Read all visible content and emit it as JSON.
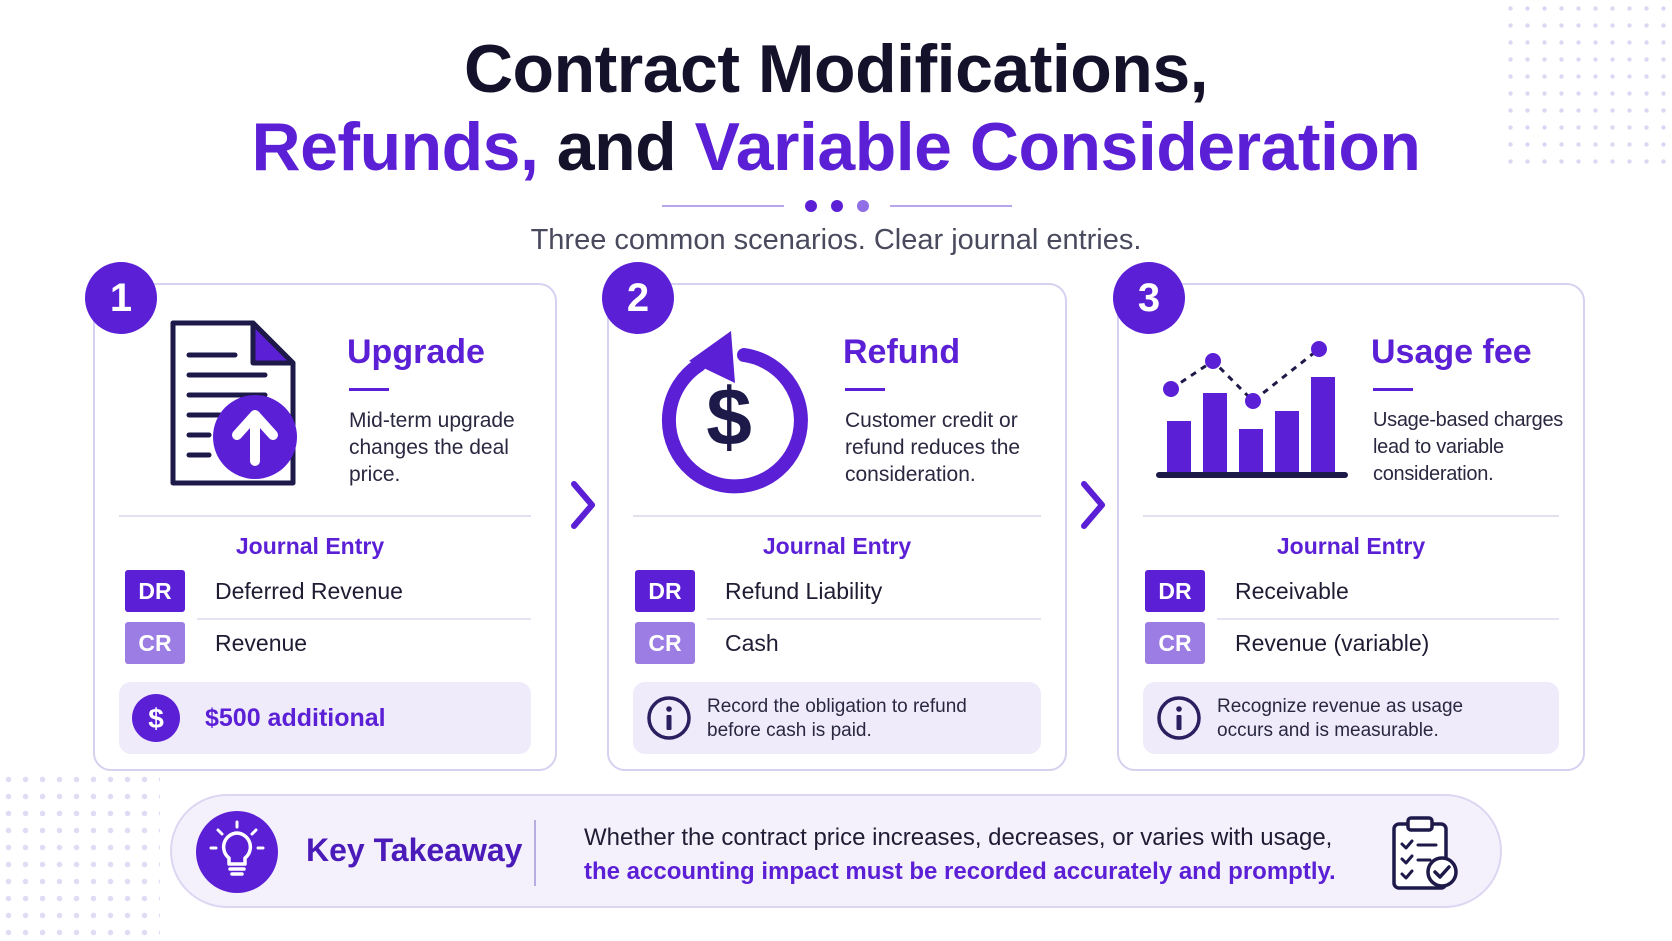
{
  "header": {
    "title_line1": "Contract Modifications,",
    "title_line2_part1": "Refunds,",
    "title_line2_part2": " and ",
    "title_line2_part3": "Variable Consideration",
    "subtitle": "Three common scenarios. Clear journal entries."
  },
  "colors": {
    "accent": "#5b1fd6",
    "accent_light": "#9b7de4",
    "note_bg": "#efebfb"
  },
  "cards": [
    {
      "number": "1",
      "icon": "document-upload-icon",
      "title": "Upgrade",
      "description": "Mid-term upgrade changes the deal price.",
      "journal_title": "Journal Entry",
      "dr_tag": "DR",
      "dr_account": "Deferred Revenue",
      "cr_tag": "CR",
      "cr_account": "Revenue",
      "note_icon": "dollar-icon",
      "note": "$500 additional"
    },
    {
      "number": "2",
      "icon": "refund-cycle-icon",
      "title": "Refund",
      "description": "Customer credit or refund reduces the consideration.",
      "journal_title": "Journal Entry",
      "dr_tag": "DR",
      "dr_account": "Refund Liability",
      "cr_tag": "CR",
      "cr_account": "Cash",
      "note_icon": "info-icon",
      "note": "Record the obligation to refund before cash is paid."
    },
    {
      "number": "3",
      "icon": "bar-chart-icon",
      "title": "Usage fee",
      "description": "Usage-based charges lead to variable consideration.",
      "journal_title": "Journal Entry",
      "dr_tag": "DR",
      "dr_account": "Receivable",
      "cr_tag": "CR",
      "cr_account": "Revenue (variable)",
      "note_icon": "info-icon",
      "note": "Recognize revenue as usage occurs and is measurable."
    }
  ],
  "takeaway": {
    "icon": "lightbulb-icon",
    "title": "Key Takeaway",
    "line1": "Whether the contract price increases, decreases, or varies with usage,",
    "line2": "the accounting impact must be recorded accurately and promptly.",
    "end_icon": "checklist-clipboard-icon"
  }
}
